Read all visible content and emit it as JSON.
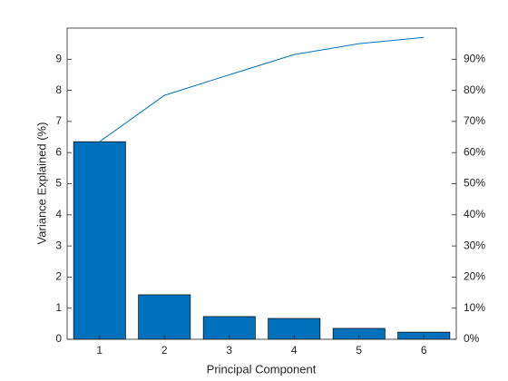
{
  "chart_data": {
    "type": "pareto",
    "xlabel": "Principal Component",
    "ylabel": "Variance Explained (%)",
    "categories": [
      "1",
      "2",
      "3",
      "4",
      "5",
      "6"
    ],
    "series": [
      {
        "name": "Variance",
        "color": "#0072bd",
        "values": [
          6.35,
          1.43,
          0.73,
          0.67,
          0.35,
          0.23
        ]
      },
      {
        "name": "Cumulative",
        "color": "#0072bd",
        "axis": "y2",
        "values": [
          63.5,
          78.4,
          85.0,
          91.5,
          95.0,
          97.0
        ]
      }
    ],
    "ylim": [
      0,
      10
    ],
    "yticks": [
      0,
      1,
      2,
      3,
      4,
      5,
      6,
      7,
      8,
      9
    ],
    "y2lim": [
      0,
      100
    ],
    "y2ticks": [
      {
        "value": 0,
        "label": "0%"
      },
      {
        "value": 10,
        "label": "10%"
      },
      {
        "value": 20,
        "label": "20%"
      },
      {
        "value": 30,
        "label": "30%"
      },
      {
        "value": 40,
        "label": "40%"
      },
      {
        "value": 50,
        "label": "50%"
      },
      {
        "value": 60,
        "label": "60%"
      },
      {
        "value": 70,
        "label": "70%"
      },
      {
        "value": 80,
        "label": "80%"
      },
      {
        "value": 90,
        "label": "90%"
      }
    ]
  }
}
